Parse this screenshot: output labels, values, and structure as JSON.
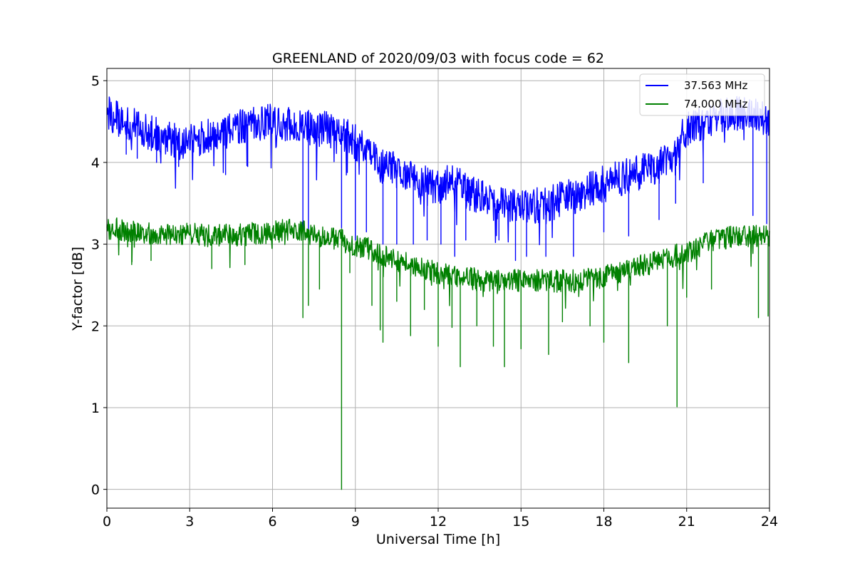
{
  "chart_data": {
    "type": "line",
    "title": "GREENLAND of 2020/09/03 with focus code = 62",
    "xlabel": "Universal Time [h]",
    "ylabel": "Y-factor [dB]",
    "xlim": [
      0,
      24
    ],
    "ylim": [
      -0.23,
      5.15
    ],
    "xticks": [
      0,
      3,
      6,
      9,
      12,
      15,
      18,
      21,
      24
    ],
    "yticks": [
      0,
      1,
      2,
      3,
      4,
      5
    ],
    "grid": true,
    "legend_position": "top-right",
    "series": [
      {
        "name": "37.563 MHz",
        "color": "#0000ff",
        "baseline": {
          "x": [
            0,
            0.5,
            1,
            2,
            3,
            4,
            5,
            6,
            7,
            8,
            8.5,
            9,
            9.5,
            10,
            10.5,
            11,
            11.5,
            12,
            12.5,
            13,
            14,
            15,
            16,
            17,
            18,
            19,
            20,
            20.5,
            21,
            22,
            23,
            24
          ],
          "y": [
            4.62,
            4.5,
            4.45,
            4.3,
            4.25,
            4.35,
            4.45,
            4.5,
            4.45,
            4.4,
            4.35,
            4.25,
            4.1,
            3.95,
            3.9,
            3.85,
            3.75,
            3.7,
            3.8,
            3.65,
            3.5,
            3.45,
            3.5,
            3.6,
            3.75,
            3.85,
            3.95,
            4.1,
            4.4,
            4.55,
            4.6,
            4.55
          ]
        },
        "noise_amplitude": 0.22,
        "dips": [
          {
            "x": 0.7,
            "y": 4.1
          },
          {
            "x": 1.1,
            "y": 4.05
          },
          {
            "x": 1.8,
            "y": 4.0
          },
          {
            "x": 2.6,
            "y": 3.95
          },
          {
            "x": 4.3,
            "y": 3.85
          },
          {
            "x": 5.1,
            "y": 3.95
          },
          {
            "x": 7.1,
            "y": 3.1
          },
          {
            "x": 7.3,
            "y": 3.05
          },
          {
            "x": 8.5,
            "y": 3.2
          },
          {
            "x": 9.0,
            "y": 3.05
          },
          {
            "x": 9.4,
            "y": 3.15
          },
          {
            "x": 10.0,
            "y": 3.0
          },
          {
            "x": 10.5,
            "y": 3.0
          },
          {
            "x": 11.1,
            "y": 3.0
          },
          {
            "x": 11.6,
            "y": 3.05
          },
          {
            "x": 12.1,
            "y": 3.0
          },
          {
            "x": 12.6,
            "y": 2.85
          },
          {
            "x": 13.0,
            "y": 3.05
          },
          {
            "x": 14.2,
            "y": 3.05
          },
          {
            "x": 14.8,
            "y": 2.8
          },
          {
            "x": 15.2,
            "y": 2.85
          },
          {
            "x": 15.9,
            "y": 2.85
          },
          {
            "x": 16.9,
            "y": 2.85
          },
          {
            "x": 18.0,
            "y": 3.15
          },
          {
            "x": 18.9,
            "y": 3.1
          },
          {
            "x": 20.0,
            "y": 3.3
          },
          {
            "x": 20.6,
            "y": 3.5
          },
          {
            "x": 21.6,
            "y": 3.75
          },
          {
            "x": 23.4,
            "y": 3.35
          },
          {
            "x": 23.9,
            "y": 3.25
          }
        ]
      },
      {
        "name": "74.000 MHz",
        "color": "#008000",
        "baseline": {
          "x": [
            0,
            1,
            2,
            3,
            4,
            5,
            6,
            7,
            7.5,
            8,
            8.5,
            9,
            9.5,
            10,
            10.5,
            11,
            11.5,
            12,
            12.5,
            13,
            14,
            15,
            16,
            17,
            18,
            19,
            20,
            21,
            22,
            23,
            24
          ],
          "y": [
            3.2,
            3.15,
            3.12,
            3.12,
            3.1,
            3.12,
            3.15,
            3.18,
            3.1,
            3.08,
            3.05,
            2.98,
            2.95,
            2.85,
            2.8,
            2.75,
            2.68,
            2.65,
            2.6,
            2.58,
            2.55,
            2.55,
            2.55,
            2.55,
            2.6,
            2.7,
            2.8,
            2.9,
            3.05,
            3.1,
            3.1
          ]
        },
        "noise_amplitude": 0.14,
        "dips": [
          {
            "x": 0.9,
            "y": 2.75
          },
          {
            "x": 1.6,
            "y": 2.8
          },
          {
            "x": 3.8,
            "y": 2.7
          },
          {
            "x": 5.0,
            "y": 2.75
          },
          {
            "x": 7.1,
            "y": 2.1
          },
          {
            "x": 7.3,
            "y": 2.25
          },
          {
            "x": 7.7,
            "y": 2.45
          },
          {
            "x": 8.5,
            "y": 0.0
          },
          {
            "x": 8.8,
            "y": 2.65
          },
          {
            "x": 9.6,
            "y": 2.25
          },
          {
            "x": 9.9,
            "y": 1.95
          },
          {
            "x": 10.0,
            "y": 1.8
          },
          {
            "x": 10.5,
            "y": 2.3
          },
          {
            "x": 11.0,
            "y": 1.88
          },
          {
            "x": 11.5,
            "y": 2.2
          },
          {
            "x": 12.0,
            "y": 1.75
          },
          {
            "x": 12.5,
            "y": 1.98
          },
          {
            "x": 12.8,
            "y": 1.5
          },
          {
            "x": 13.4,
            "y": 2.0
          },
          {
            "x": 14.0,
            "y": 1.75
          },
          {
            "x": 14.4,
            "y": 1.5
          },
          {
            "x": 15.0,
            "y": 1.72
          },
          {
            "x": 16.0,
            "y": 1.65
          },
          {
            "x": 16.5,
            "y": 2.05
          },
          {
            "x": 17.5,
            "y": 2.0
          },
          {
            "x": 18.0,
            "y": 1.8
          },
          {
            "x": 18.9,
            "y": 1.55
          },
          {
            "x": 20.3,
            "y": 2.0
          },
          {
            "x": 20.65,
            "y": 1.01
          },
          {
            "x": 21.0,
            "y": 2.35
          },
          {
            "x": 21.9,
            "y": 2.45
          },
          {
            "x": 23.6,
            "y": 2.1
          },
          {
            "x": 23.95,
            "y": 2.12
          }
        ]
      }
    ]
  }
}
